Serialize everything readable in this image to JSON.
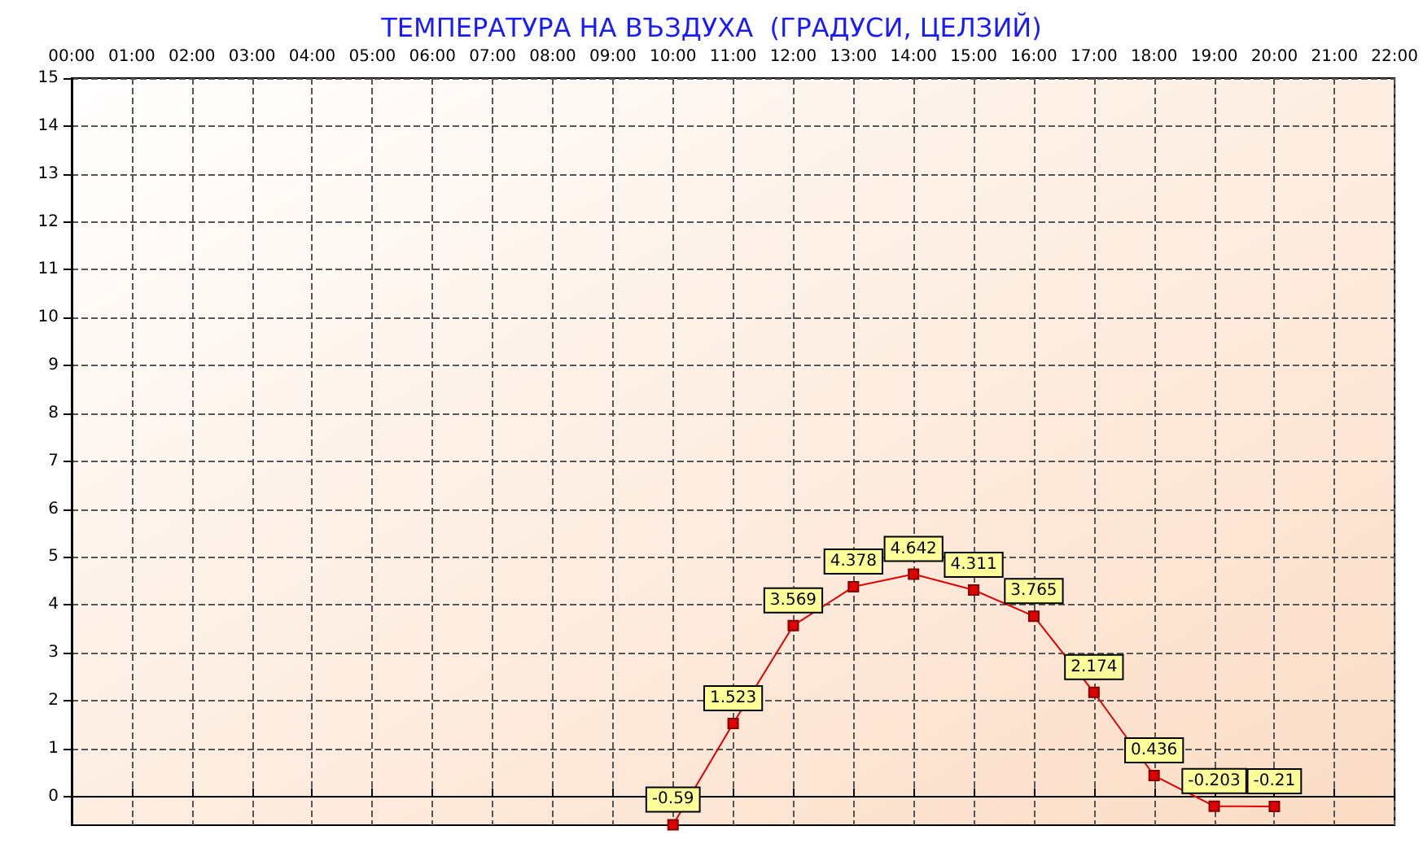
{
  "chart_data": {
    "type": "line",
    "title": "ТЕМПЕРАТУРА НА ВЪЗДУХА  (ГРАДУСИ, ЦЕЛЗИЙ)",
    "x": [
      10,
      11,
      12,
      13,
      14,
      15,
      16,
      17,
      18,
      19,
      20
    ],
    "series": [
      {
        "color": "#e00000",
        "values": [
          -0.59,
          1.523,
          3.569,
          4.378,
          4.642,
          4.311,
          3.765,
          2.174,
          0.436,
          -0.203,
          -0.21
        ]
      }
    ],
    "data_labels": true,
    "marker": "square",
    "line_style": "solid",
    "grid": true,
    "xlim": [
      0,
      22
    ],
    "xticks": [
      {
        "value": 0,
        "label": "00:00"
      },
      {
        "value": 1,
        "label": "01:00"
      },
      {
        "value": 2,
        "label": "02:00"
      },
      {
        "value": 3,
        "label": "03:00"
      },
      {
        "value": 4,
        "label": "04:00"
      },
      {
        "value": 5,
        "label": "05:00"
      },
      {
        "value": 6,
        "label": "06:00"
      },
      {
        "value": 7,
        "label": "07:00"
      },
      {
        "value": 8,
        "label": "08:00"
      },
      {
        "value": 9,
        "label": "09:00"
      },
      {
        "value": 10,
        "label": "10:00"
      },
      {
        "value": 11,
        "label": "11:00"
      },
      {
        "value": 12,
        "label": "12:00"
      },
      {
        "value": 13,
        "label": "13:00"
      },
      {
        "value": 14,
        "label": "14:00"
      },
      {
        "value": 15,
        "label": "15:00"
      },
      {
        "value": 16,
        "label": "16:00"
      },
      {
        "value": 17,
        "label": "17:00"
      },
      {
        "value": 18,
        "label": "18:00"
      },
      {
        "value": 19,
        "label": "19:00"
      },
      {
        "value": 20,
        "label": "20:00"
      },
      {
        "value": 21,
        "label": "21:00"
      },
      {
        "value": 22,
        "label": "22:00"
      }
    ],
    "ylim": [
      -0.6,
      15
    ],
    "yticks": [
      0,
      1,
      2,
      3,
      4,
      5,
      6,
      7,
      8,
      9,
      10,
      11,
      12,
      13,
      14,
      15
    ]
  }
}
